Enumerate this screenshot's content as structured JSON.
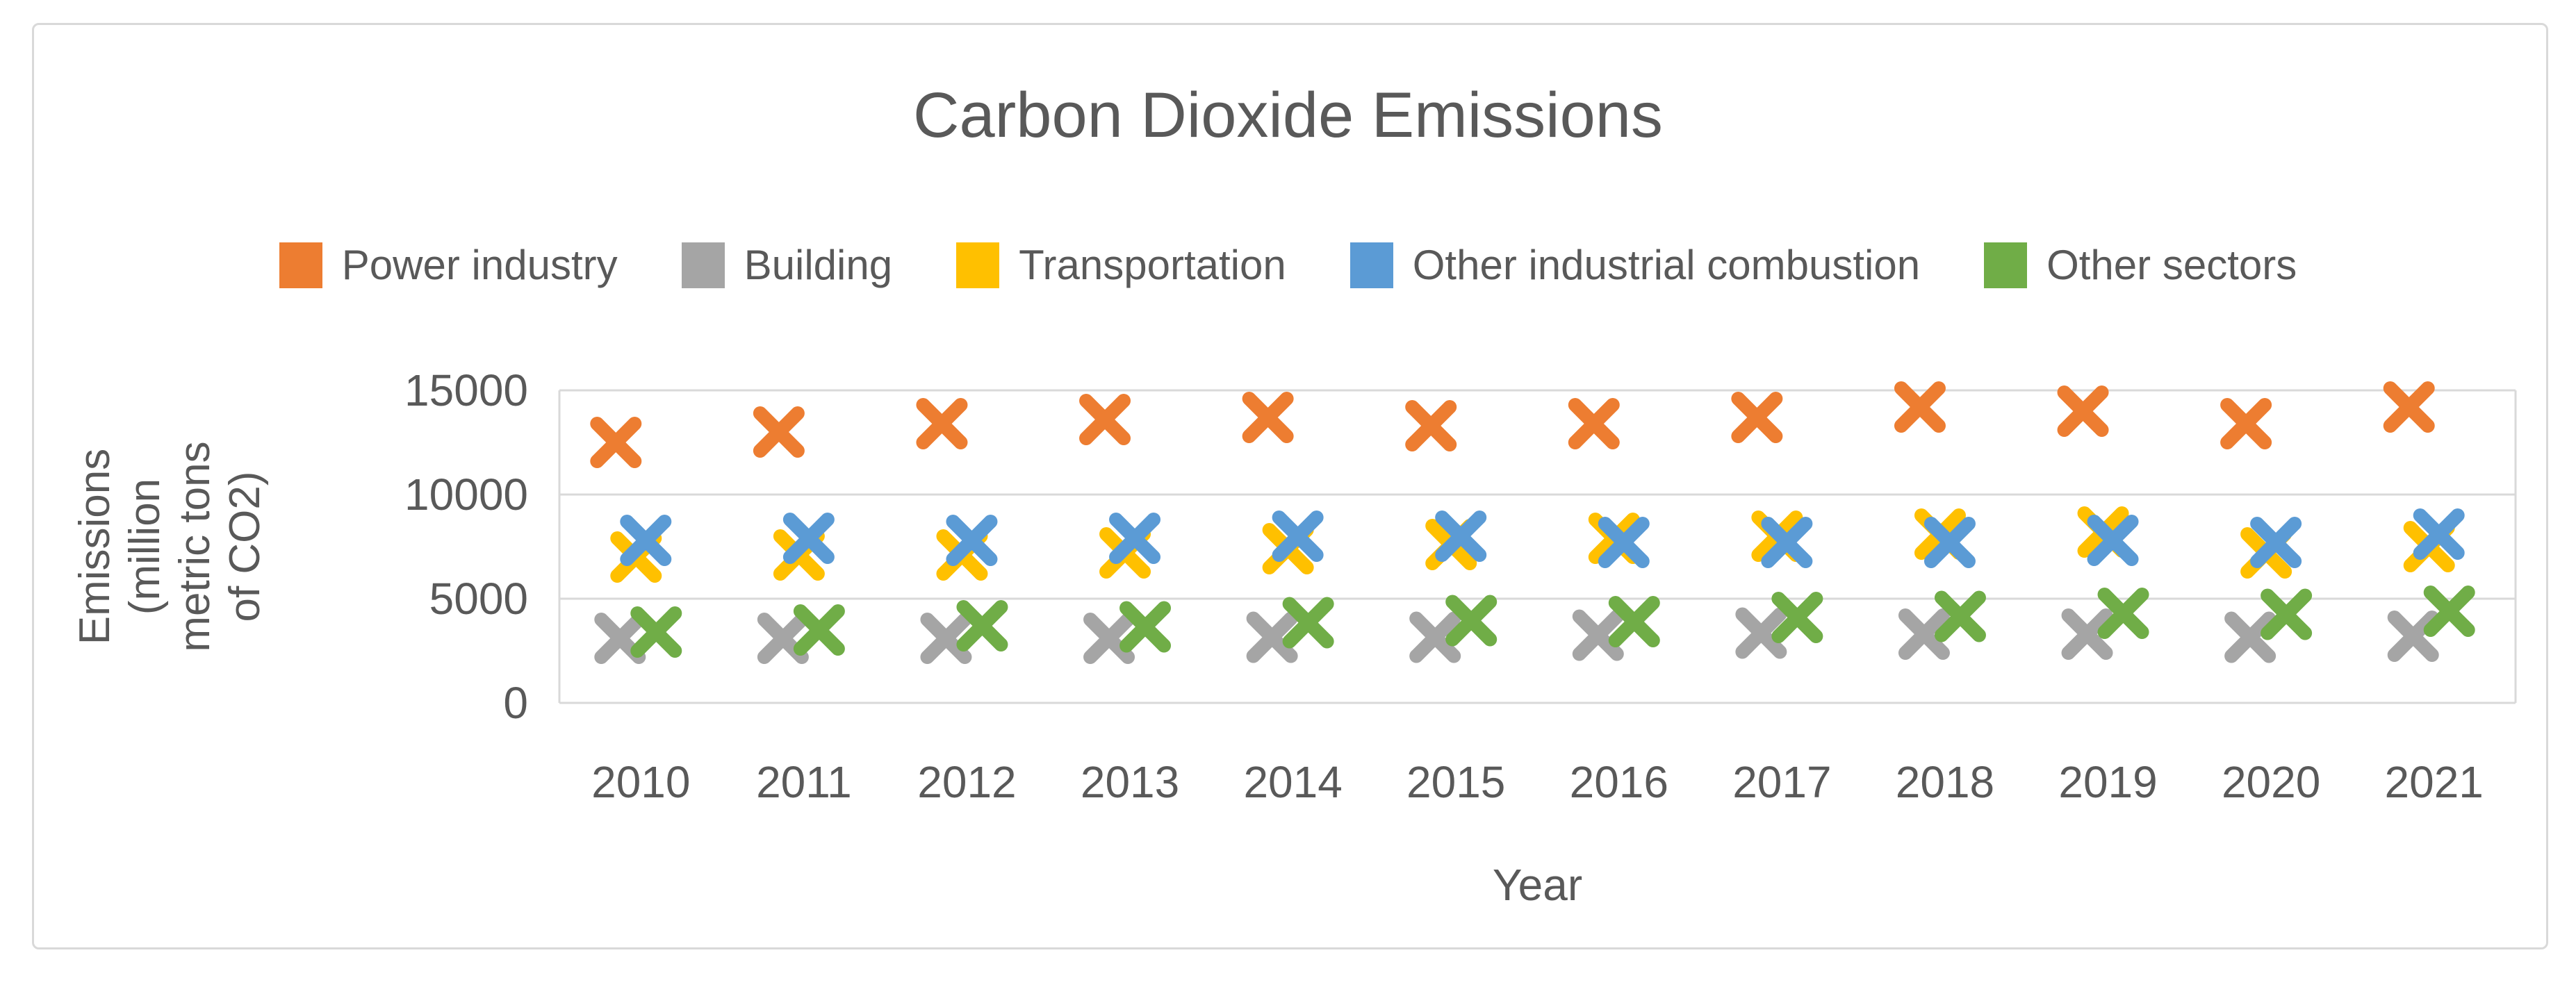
{
  "chart_data": {
    "type": "scatter",
    "title": "Carbon Dioxide Emissions",
    "xlabel": "Year",
    "ylabel": "Emissions (million metric tons of CO2)",
    "ylabel_lines": [
      "Emissions",
      "(million",
      "metric tons",
      "of CO2)"
    ],
    "categories": [
      "2010",
      "2011",
      "2012",
      "2013",
      "2014",
      "2015",
      "2016",
      "2017",
      "2018",
      "2019",
      "2020",
      "2021"
    ],
    "y_ticks": [
      0,
      5000,
      10000,
      15000
    ],
    "ylim": [
      0,
      15000
    ],
    "grid": "horizontal",
    "legend_position": "top",
    "marker": "x",
    "series": [
      {
        "name": "Power industry",
        "color": "#ED7D31",
        "values": [
          12500,
          13000,
          13400,
          13600,
          13700,
          13300,
          13400,
          13700,
          14200,
          14000,
          13400,
          14200
        ]
      },
      {
        "name": "Building",
        "color": "#A5A5A5",
        "values": [
          3100,
          3100,
          3100,
          3100,
          3150,
          3150,
          3250,
          3350,
          3300,
          3300,
          3150,
          3200
        ]
      },
      {
        "name": "Transportation",
        "color": "#FFC000",
        "values": [
          7000,
          7100,
          7100,
          7200,
          7400,
          7600,
          7900,
          8000,
          8100,
          8200,
          7200,
          7500
        ]
      },
      {
        "name": "Other industrial combustion",
        "color": "#5B9BD5",
        "values": [
          7800,
          7900,
          7800,
          7900,
          8000,
          8000,
          7700,
          7700,
          7700,
          7800,
          7700,
          8100
        ]
      },
      {
        "name": "Other sectors",
        "color": "#70AD47",
        "values": [
          3400,
          3500,
          3700,
          3650,
          3850,
          3950,
          3900,
          4100,
          4150,
          4300,
          4250,
          4400
        ]
      }
    ],
    "colors": {
      "text": "#595959",
      "gridline": "#D9D9D9",
      "frame_border": "#D9D9D9",
      "background": "#FFFFFF"
    }
  }
}
